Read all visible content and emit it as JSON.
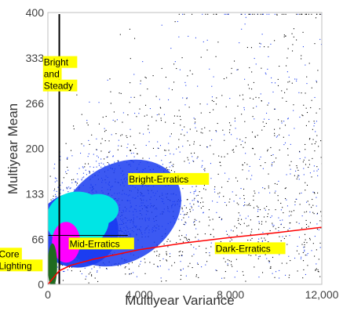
{
  "chart_data": {
    "type": "scatter",
    "title": "",
    "xlabel": "Multiyear Variance",
    "ylabel": "Multiyear Mean",
    "xlim": [
      0,
      12000
    ],
    "ylim": [
      0,
      400
    ],
    "x_ticks": [
      0,
      4000,
      8000,
      12000
    ],
    "x_tick_labels": [
      "0",
      "4,000",
      "8,000",
      "12,000"
    ],
    "y_ticks": [
      0,
      66,
      133,
      200,
      266,
      333,
      400
    ],
    "y_tick_labels": [
      "0",
      "66",
      "133",
      "200",
      "266",
      "333",
      "400"
    ],
    "grid": false,
    "colors": {
      "sparse_points": "#000000",
      "dense_points": "#1a3cf0",
      "denser_points": "#00e5e5",
      "densest_points": "#ff00ff",
      "core": "#1f6b1f",
      "threshold_curve": "#ff0000",
      "label_highlight": "#ffff00"
    },
    "threshold_lines": [
      {
        "orientation": "vertical",
        "x": 500,
        "color": "#000000"
      },
      {
        "orientation": "horizontal",
        "y": 72,
        "x_range": [
          0,
          3500
        ],
        "color": "#000000"
      }
    ],
    "threshold_curve": {
      "color": "#ff0000",
      "points": [
        [
          0,
          0
        ],
        [
          500,
          20
        ],
        [
          1000,
          28
        ],
        [
          2000,
          37
        ],
        [
          3000,
          44
        ],
        [
          4000,
          51
        ],
        [
          6000,
          61
        ],
        [
          8000,
          69
        ],
        [
          10000,
          76
        ],
        [
          12000,
          84
        ]
      ]
    },
    "region_labels": [
      {
        "lines": [
          "Bright",
          "and",
          "Steady"
        ],
        "x": -180,
        "y": 322
      },
      {
        "lines": [
          "Bright-Erratics"
        ],
        "x": 3550,
        "y": 150
      },
      {
        "lines": [
          "Mid-Erratics"
        ],
        "x": 950,
        "y": 55
      },
      {
        "lines": [
          "Dark-Erratics"
        ],
        "x": 7350,
        "y": 48
      },
      {
        "lines": [
          "Core",
          "Lighting"
        ],
        "x": -2150,
        "y": 40
      }
    ]
  }
}
